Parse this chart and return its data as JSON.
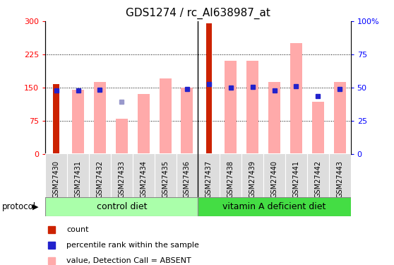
{
  "title": "GDS1274 / rc_AI638987_at",
  "samples": [
    "GSM27430",
    "GSM27431",
    "GSM27432",
    "GSM27433",
    "GSM27434",
    "GSM27435",
    "GSM27436",
    "GSM27437",
    "GSM27438",
    "GSM27439",
    "GSM27440",
    "GSM27441",
    "GSM27442",
    "GSM27443"
  ],
  "count_values": [
    158,
    0,
    0,
    0,
    0,
    0,
    0,
    295,
    0,
    0,
    0,
    0,
    0,
    0
  ],
  "pink_bar_values": [
    0,
    145,
    163,
    80,
    135,
    170,
    150,
    0,
    210,
    210,
    162,
    250,
    118,
    163
  ],
  "blue_square_values": [
    143,
    143,
    145,
    0,
    0,
    0,
    147,
    158,
    150,
    152,
    143,
    153,
    130,
    147
  ],
  "light_blue_square_values": [
    0,
    0,
    0,
    118,
    0,
    0,
    0,
    0,
    0,
    0,
    0,
    0,
    0,
    0
  ],
  "ylim": [
    0,
    300
  ],
  "y2lim": [
    0,
    100
  ],
  "yticks_left": [
    0,
    75,
    150,
    225,
    300
  ],
  "yticks_right": [
    0,
    25,
    50,
    75,
    100
  ],
  "ytick_labels_right": [
    "0",
    "25",
    "50",
    "75",
    "100%"
  ],
  "control_label": "control diet",
  "vitamin_label": "vitamin A deficient diet",
  "protocol_label": "protocol",
  "n_control": 7,
  "n_vitamin": 7,
  "pink_bar_color": "#ffaaaa",
  "count_bar_color": "#cc2200",
  "blue_sq_color": "#2222cc",
  "light_blue_sq_color": "#9999cc",
  "control_bg_color": "#aaffaa",
  "vitamin_bg_color": "#44dd44",
  "sample_bg_color": "#dddddd",
  "bg_color": "#ffffff",
  "grid_color": "#000000"
}
